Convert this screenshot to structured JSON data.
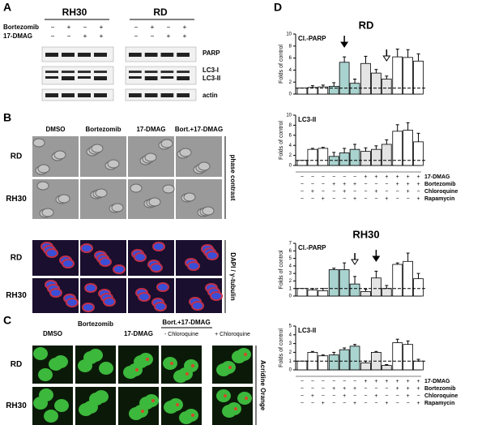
{
  "panels": {
    "A": {
      "letter": "A",
      "groups": [
        "RH30",
        "RD"
      ],
      "rows": [
        "Bortezomib",
        "17-DMAG"
      ],
      "signs": [
        [
          "−",
          "+",
          "−",
          "+",
          "−",
          "+",
          "−",
          "+"
        ],
        [
          "−",
          "−",
          "+",
          "+",
          "−",
          "−",
          "+",
          "+"
        ]
      ],
      "bands": [
        "PARP",
        "LC3-I",
        "LC3-II",
        "actin"
      ]
    },
    "B": {
      "letter": "B",
      "columns": [
        "DMSO",
        "Bortezomib",
        "17-DMAG",
        "Bort.+17-DMAG"
      ],
      "rows": [
        "RD",
        "RH30",
        "RD",
        "RH30"
      ],
      "side_labels": [
        "phase contrast",
        "DAPI / γ-tubulin"
      ]
    },
    "C": {
      "letter": "C",
      "columns": [
        "DMSO",
        "Bortezomib",
        "17-DMAG"
      ],
      "combo": "Bort.+17-DMAG",
      "combo_columns": [
        "- Chloroquine",
        "+ Chloroquine"
      ],
      "rows": [
        "RD",
        "RH30"
      ],
      "side_label": "Acridine Orange"
    },
    "D": {
      "letter": "D",
      "cell_lines": [
        "RD",
        "RH30"
      ],
      "treatments": [
        "17-DMAG",
        "Bortezomib",
        "Chloroquine",
        "Rapamycin"
      ],
      "signs": [
        [
          "−",
          "−",
          "−",
          "−",
          "−",
          "−",
          "+",
          "+",
          "+",
          "+",
          "+",
          "+"
        ],
        [
          "−",
          "−",
          "−",
          "+",
          "+",
          "+",
          "−",
          "−",
          "−",
          "+",
          "+",
          "+"
        ],
        [
          "−",
          "+",
          "−",
          "−",
          "+",
          "−",
          "−",
          "+",
          "−",
          "−",
          "+",
          "−"
        ],
        [
          "−",
          "−",
          "+",
          "−",
          "−",
          "+",
          "−",
          "−",
          "+",
          "−",
          "−",
          "+"
        ]
      ]
    }
  },
  "chart_data": [
    {
      "type": "bar",
      "title": "Cl.-PARP",
      "ylabel": "Folds of control",
      "values": [
        1,
        1.1,
        1.2,
        1.3,
        5.3,
        1.8,
        5.1,
        3.5,
        2.5,
        6.2,
        6.1,
        5.5
      ],
      "errors": [
        0,
        0.3,
        0.3,
        0.6,
        0.9,
        0.7,
        1.2,
        0.6,
        0.5,
        1.3,
        1.3,
        1.2
      ],
      "colors": [
        "#ffffff",
        "#ffffff",
        "#ffffff",
        "#a9d3cf",
        "#a9d3cf",
        "#a9d3cf",
        "#e4e4e4",
        "#e4e4e4",
        "#e4e4e4",
        "#ffffff",
        "#ffffff",
        "#ffffff"
      ],
      "ylim": [
        0,
        10
      ],
      "yticks": [
        0,
        2,
        4,
        6,
        8,
        10
      ],
      "reference_line": 1
    },
    {
      "type": "bar",
      "title": "LC3-II",
      "ylabel": "Folds of control",
      "values": [
        1,
        3.2,
        3.4,
        1.8,
        2.5,
        3.2,
        2.8,
        3.2,
        4.2,
        6.8,
        7.0,
        4.7
      ],
      "errors": [
        0,
        0.2,
        0.2,
        0.8,
        0.9,
        1.0,
        0.7,
        0.7,
        0.9,
        1.3,
        1.5,
        1.7
      ],
      "colors": [
        "#ffffff",
        "#ffffff",
        "#ffffff",
        "#a9d3cf",
        "#a9d3cf",
        "#a9d3cf",
        "#e4e4e4",
        "#e4e4e4",
        "#e4e4e4",
        "#ffffff",
        "#ffffff",
        "#ffffff"
      ],
      "ylim": [
        0,
        10
      ],
      "yticks": [
        0,
        2,
        4,
        6,
        8,
        10
      ],
      "reference_line": 1
    },
    {
      "type": "bar",
      "title": "Cl.-PARP",
      "ylabel": "Folds of control",
      "values": [
        1,
        0.8,
        0.7,
        3.5,
        3.5,
        1.6,
        0.6,
        2.4,
        1.0,
        4.2,
        4.6,
        2.3
      ],
      "errors": [
        0,
        0.2,
        0.3,
        0.2,
        0.9,
        1.0,
        0.3,
        0.9,
        0.4,
        0.2,
        1.1,
        0.7
      ],
      "colors": [
        "#ffffff",
        "#ffffff",
        "#ffffff",
        "#a9d3cf",
        "#a9d3cf",
        "#a9d3cf",
        "#e4e4e4",
        "#e4e4e4",
        "#e4e4e4",
        "#ffffff",
        "#ffffff",
        "#ffffff"
      ],
      "ylim": [
        0,
        7
      ],
      "yticks": [
        0,
        1,
        2,
        3,
        4,
        5,
        6,
        7
      ],
      "reference_line": 1
    },
    {
      "type": "bar",
      "title": "LC3-II",
      "ylabel": "Folds of control",
      "values": [
        1,
        2.0,
        1.6,
        1.7,
        2.3,
        2.7,
        0.8,
        2.0,
        0.5,
        3.1,
        2.9,
        1.0
      ],
      "errors": [
        0,
        0.1,
        0.1,
        0.3,
        0.2,
        0.2,
        0.2,
        0.1,
        0.1,
        0.4,
        0.4,
        0.2
      ],
      "colors": [
        "#ffffff",
        "#ffffff",
        "#ffffff",
        "#a9d3cf",
        "#a9d3cf",
        "#a9d3cf",
        "#e4e4e4",
        "#e4e4e4",
        "#e4e4e4",
        "#ffffff",
        "#ffffff",
        "#ffffff"
      ],
      "ylim": [
        0,
        5
      ],
      "yticks": [
        0,
        1,
        2,
        3,
        4,
        5
      ],
      "reference_line": 1
    }
  ]
}
